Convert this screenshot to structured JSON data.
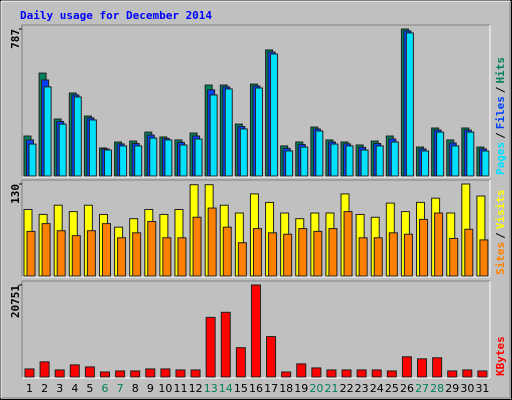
{
  "chart_data": [
    {
      "type": "bar",
      "title": "Daily usage for December 2014",
      "ylim": [
        0,
        787
      ],
      "yticks": [
        787
      ],
      "legend_separator": "/",
      "series": [
        {
          "name": "Hits",
          "color": "#00805c",
          "values": [
            214,
            551,
            305,
            444,
            321,
            150,
            182,
            187,
            235,
            209,
            193,
            230,
            487,
            487,
            278,
            492,
            675,
            161,
            182,
            262,
            193,
            182,
            166,
            187,
            214,
            787,
            155,
            257,
            193,
            257,
            155
          ]
        },
        {
          "name": "Files",
          "color": "#0040ff",
          "values": [
            193,
            514,
            292,
            434,
            311,
            145,
            172,
            174,
            219,
            201,
            180,
            214,
            461,
            477,
            265,
            482,
            664,
            148,
            169,
            252,
            182,
            172,
            153,
            174,
            198,
            777,
            145,
            246,
            177,
            246,
            145
          ]
        },
        {
          "name": "Pages",
          "color": "#00e0ff",
          "values": [
            171,
            477,
            278,
            423,
            300,
            139,
            161,
            161,
            203,
            193,
            166,
            198,
            434,
            466,
            252,
            471,
            653,
            134,
            155,
            241,
            171,
            161,
            139,
            161,
            182,
            766,
            134,
            235,
            161,
            235,
            134
          ]
        }
      ]
    },
    {
      "type": "bar",
      "ylim": [
        0,
        130
      ],
      "yticks": [
        130
      ],
      "legend_separator": "/",
      "series": [
        {
          "name": "Visits",
          "color": "#ffff00",
          "values": [
            94,
            87,
            100,
            91,
            100,
            87,
            69,
            81,
            94,
            87,
            94,
            129,
            129,
            100,
            89,
            116,
            104,
            89,
            81,
            89,
            89,
            116,
            87,
            83,
            103,
            91,
            104,
            110,
            89,
            130,
            113
          ]
        },
        {
          "name": "Sites",
          "color": "#ff8000",
          "values": [
            63,
            74,
            64,
            57,
            64,
            74,
            54,
            61,
            77,
            54,
            54,
            83,
            96,
            69,
            47,
            67,
            61,
            59,
            67,
            63,
            67,
            91,
            54,
            54,
            61,
            59,
            80,
            89,
            53,
            66,
            51
          ]
        }
      ]
    },
    {
      "type": "bar",
      "ylim": [
        0,
        20751
      ],
      "yticks": [
        20751
      ],
      "legend_separator": "/",
      "series": [
        {
          "name": "KBytes",
          "color": "#ff0000",
          "values": [
            1824,
            3420,
            1596,
            2736,
            2280,
            1140,
            1368,
            1368,
            1824,
            1824,
            1596,
            1596,
            13454,
            14594,
            6613,
            20751,
            9121,
            1140,
            2964,
            2052,
            1596,
            1596,
            1596,
            1596,
            1368,
            4561,
            4105,
            4333,
            1368,
            1596,
            1368
          ]
        }
      ],
      "categories": [
        "1",
        "2",
        "3",
        "4",
        "5",
        "6",
        "7",
        "8",
        "9",
        "10",
        "11",
        "12",
        "13",
        "14",
        "15",
        "16",
        "17",
        "18",
        "19",
        "20",
        "21",
        "22",
        "23",
        "24",
        "25",
        "26",
        "27",
        "28",
        "29",
        "30",
        "31"
      ],
      "category_colors": [
        "#000000",
        "#000000",
        "#000000",
        "#000000",
        "#000000",
        "#00805c",
        "#00805c",
        "#000000",
        "#000000",
        "#000000",
        "#000000",
        "#000000",
        "#00805c",
        "#00805c",
        "#000000",
        "#000000",
        "#000000",
        "#000000",
        "#000000",
        "#00805c",
        "#00805c",
        "#000000",
        "#000000",
        "#000000",
        "#000000",
        "#000000",
        "#00805c",
        "#00805c",
        "#000000",
        "#000000",
        "#000000"
      ]
    }
  ]
}
